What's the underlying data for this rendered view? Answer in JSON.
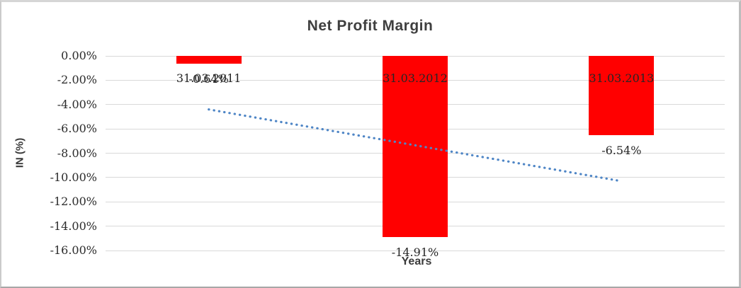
{
  "chart_data": {
    "type": "bar",
    "title": "Net Profit Margin",
    "xlabel": "Years",
    "ylabel": "IN (%)",
    "categories": [
      "31.03.2011",
      "31.03.2012",
      "31.03.2013"
    ],
    "values": [
      -0.64,
      -14.91,
      -6.54
    ],
    "data_labels": [
      "-0.64%",
      "-14.91%",
      "-6.54%"
    ],
    "ytick_labels": [
      "0.00%",
      "-2.00%",
      "-4.00%",
      "-6.00%",
      "-8.00%",
      "-10.00%",
      "-12.00%",
      "-14.00%",
      "-16.00%"
    ],
    "ytick_values": [
      0,
      -2,
      -4,
      -6,
      -8,
      -10,
      -12,
      -14,
      -16
    ],
    "ylim": [
      0,
      -16
    ],
    "grid": true,
    "legend_position": "none",
    "bar_color": "#ff0000",
    "gridline_color": "#d9d9d9",
    "trendline": {
      "type": "linear",
      "style": "dotted",
      "color": "#4f86c6",
      "x_start": 0.5,
      "value_start": -4.4,
      "x_end": 2.5,
      "value_end": -10.3
    }
  }
}
